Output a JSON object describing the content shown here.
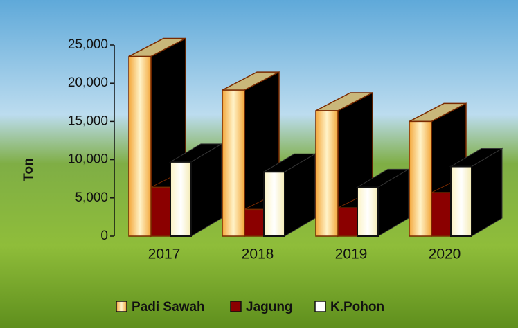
{
  "chart_data": {
    "type": "bar3d",
    "y_label": "Ton",
    "categories": [
      "2017",
      "2018",
      "2019",
      "2020"
    ],
    "series": [
      {
        "name": "Padi Sawah",
        "color": "#f3a73b",
        "values": [
          23500,
          19100,
          16400,
          15000
        ]
      },
      {
        "name": "Jagung",
        "color": "#8b0000",
        "values": [
          6400,
          3500,
          3700,
          5700
        ]
      },
      {
        "name": "K.Pohon",
        "color": "#ffffff",
        "values": [
          9700,
          8400,
          6400,
          9100
        ]
      }
    ],
    "ylim": [
      0,
      25000
    ],
    "yticks": [
      0,
      {
        "value": 5000,
        "label": "5,000"
      },
      {
        "value": 10000,
        "label": "10,000"
      },
      {
        "value": 15000,
        "label": "15,000"
      },
      {
        "value": 20000,
        "label": "20,000"
      },
      {
        "value": 25000,
        "label": "25,000"
      }
    ]
  }
}
